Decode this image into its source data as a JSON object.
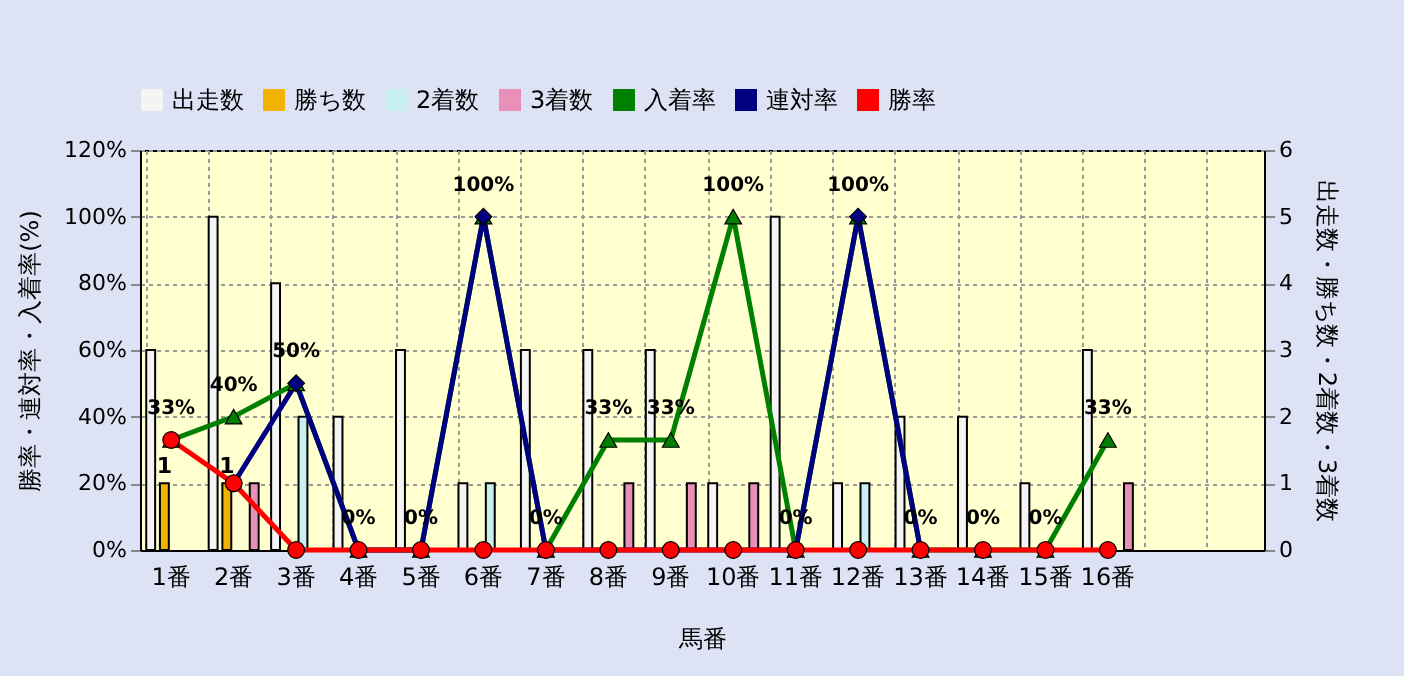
{
  "chart_data": {
    "type": "bar",
    "xlabel": "馬番",
    "ylabel": "勝率・連対率・入着率(%)",
    "y2label": "出走数・勝ち数・2着数・3着数",
    "categories": [
      "1番",
      "2番",
      "3番",
      "4番",
      "5番",
      "6番",
      "7番",
      "8番",
      "9番",
      "10番",
      "11番",
      "12番",
      "13番",
      "14番",
      "15番",
      "16番",
      null,
      null
    ],
    "series": [
      {
        "name": "出走数",
        "axis": "y2",
        "color": "#f4f4f4",
        "values": [
          3,
          5,
          4,
          2,
          3,
          1,
          3,
          3,
          3,
          1,
          5,
          1,
          2,
          2,
          1,
          3,
          null,
          null
        ]
      },
      {
        "name": "勝ち数",
        "axis": "y2",
        "color": "#f0b400",
        "values": [
          1,
          1,
          0,
          0,
          0,
          0,
          0,
          0,
          0,
          0,
          0,
          0,
          0,
          0,
          0,
          0,
          null,
          null
        ],
        "value_labels": [
          "1",
          "1",
          null,
          null,
          null,
          null,
          null,
          null,
          null,
          null,
          null,
          null,
          null,
          null,
          null,
          null,
          null,
          null
        ]
      },
      {
        "name": "2着数",
        "axis": "y2",
        "color": "#c8f0f0",
        "values": [
          0,
          0,
          2,
          0,
          0,
          1,
          0,
          0,
          0,
          0,
          0,
          1,
          0,
          0,
          0,
          0,
          null,
          null
        ]
      },
      {
        "name": "3着数",
        "axis": "y2",
        "color": "#e890b8",
        "values": [
          0,
          1,
          0,
          0,
          0,
          0,
          0,
          1,
          1,
          1,
          0,
          0,
          0,
          0,
          0,
          1,
          null,
          null
        ]
      },
      {
        "name": "入着率",
        "type": "line",
        "color": "#008000",
        "marker": "triangle",
        "values": [
          33,
          40,
          50,
          0,
          0,
          100,
          0,
          33,
          33,
          100,
          0,
          100,
          0,
          0,
          0,
          33,
          null,
          null
        ],
        "value_labels": [
          "33%",
          "40%",
          "50%",
          "0%",
          "0%",
          "100%",
          "0%",
          "33%",
          "33%",
          "100%",
          "0%",
          "100%",
          "0%",
          "0%",
          "0%",
          "33%",
          null,
          null
        ]
      },
      {
        "name": "連対率",
        "type": "line",
        "color": "#000080",
        "marker": "diamond",
        "values": [
          null,
          20,
          50,
          0,
          0,
          100,
          0,
          0,
          0,
          0,
          0,
          100,
          0,
          null,
          null,
          null,
          null,
          null
        ]
      },
      {
        "name": "勝率",
        "type": "line",
        "color": "#ff0000",
        "marker": "circle",
        "values": [
          33,
          20,
          0,
          0,
          0,
          0,
          0,
          0,
          0,
          0,
          0,
          0,
          0,
          0,
          0,
          0,
          null,
          null
        ]
      }
    ],
    "ylim": [
      0,
      120
    ],
    "yticks": [
      {
        "value": 0,
        "label": "0%"
      },
      {
        "value": 20,
        "label": "20%"
      },
      {
        "value": 40,
        "label": "40%"
      },
      {
        "value": 60,
        "label": "60%"
      },
      {
        "value": 80,
        "label": "80%"
      },
      {
        "value": 100,
        "label": "100%"
      },
      {
        "value": 120,
        "label": "120%"
      }
    ],
    "y2lim": [
      0,
      6
    ],
    "y2ticks": [
      0,
      1,
      2,
      3,
      4,
      5,
      6
    ],
    "grid": true,
    "legend": "top"
  }
}
